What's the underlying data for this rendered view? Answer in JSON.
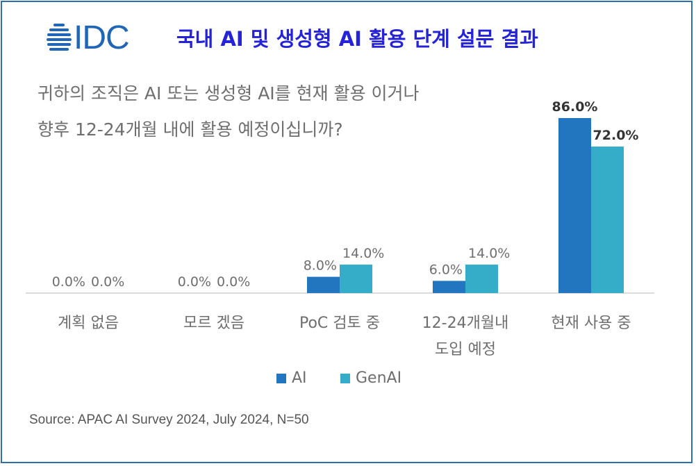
{
  "logo": {
    "text": "IDC"
  },
  "title": "국내 AI 및 생성형 AI 활용 단계 설문 결과",
  "question": {
    "line1": "귀하의 조직은 AI 또는 생성형 AI를 현재 활용 이거나",
    "line2": "향후 12-24개월 내에 활용 예정이십니까?"
  },
  "source": "Source: APAC AI Survey 2024, July 2024, N=50",
  "colors": {
    "ai": "#2276bf",
    "genai": "#35adc8",
    "frame": "#2f6fb0",
    "title": "#2423d9"
  },
  "chart_data": {
    "type": "bar",
    "categories": [
      [
        "계획 없음"
      ],
      [
        "모르 겠음"
      ],
      [
        "PoC 검토 중"
      ],
      [
        "12-24개월내",
        "도입 예정"
      ],
      [
        "현재 사용 중"
      ]
    ],
    "series": [
      {
        "name": "AI",
        "values": [
          0.0,
          0.0,
          8.0,
          6.0,
          86.0
        ],
        "labels": [
          "0.0%",
          "0.0%",
          "8.0%",
          "6.0%",
          "86.0%"
        ]
      },
      {
        "name": "GenAI",
        "values": [
          0.0,
          0.0,
          14.0,
          14.0,
          72.0
        ],
        "labels": [
          "0.0%",
          "0.0%",
          "14.0%",
          "14.0%",
          "72.0%"
        ]
      }
    ],
    "highlight_category_index": 4,
    "ylim": [
      0,
      86
    ],
    "grid": false,
    "legend": "bottom"
  }
}
